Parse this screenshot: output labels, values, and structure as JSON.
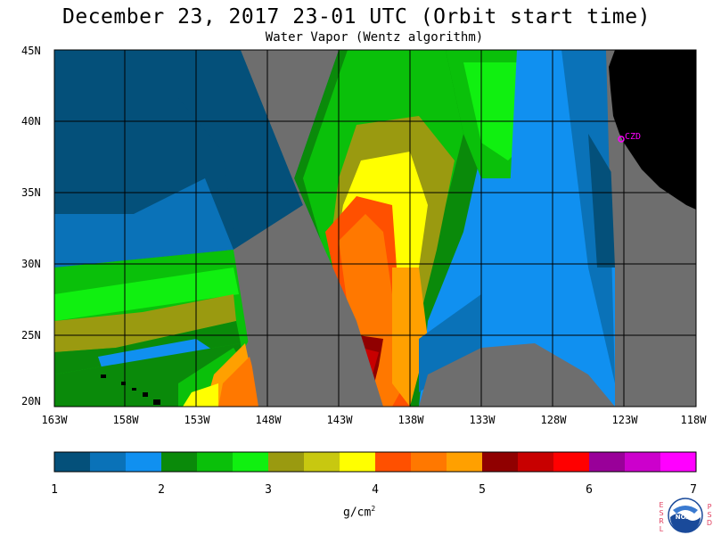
{
  "title": "December 23, 2017  23-01 UTC  (Orbit start time)",
  "subtitle": "Water Vapor (Wentz algorithm)",
  "axes": {
    "lat_labels": [
      "45N",
      "40N",
      "35N",
      "30N",
      "25N",
      "20N"
    ],
    "lon_labels": [
      "163W",
      "158W",
      "153W",
      "148W",
      "143W",
      "138W",
      "133W",
      "128W",
      "123W",
      "118W"
    ]
  },
  "station_label": "CZD",
  "colorbar": {
    "ticks": [
      "1",
      "2",
      "3",
      "4",
      "5",
      "6",
      "7"
    ],
    "units": "g/cm",
    "units_sup": "2",
    "colors": [
      "#04507a",
      "#0a72b8",
      "#1090f0",
      "#0a8a0a",
      "#0ac00a",
      "#10f010",
      "#9a9a10",
      "#c8c810",
      "#ffff00",
      "#ff5000",
      "#ff7800",
      "#ffa000",
      "#900000",
      "#c80000",
      "#ff0000",
      "#990099",
      "#cc00cc",
      "#ff00ff"
    ]
  },
  "logo": {
    "left_letters": "ESRL",
    "right_letters": "PSD",
    "center": "NOAA"
  },
  "palette": {
    "land": "#000000",
    "nodata": "#6e6e6e",
    "grid": "#000000"
  }
}
